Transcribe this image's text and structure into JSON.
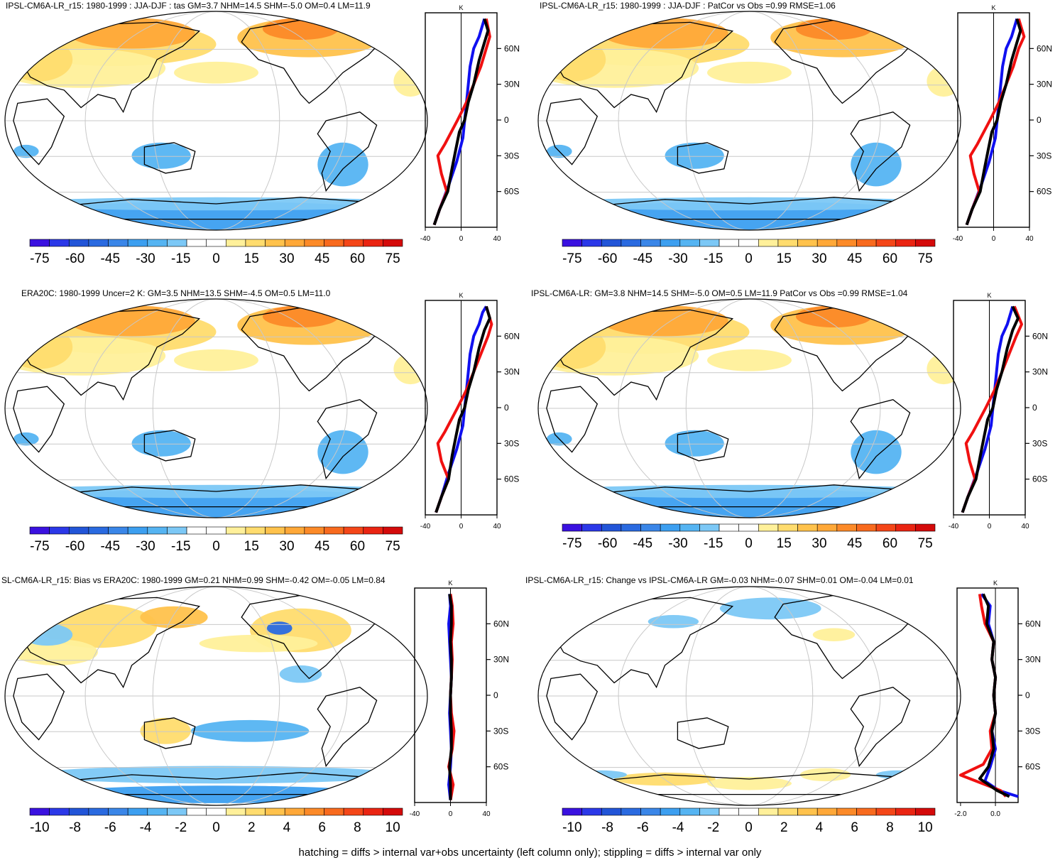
{
  "footer": "hatching = diffs > internal var+obs uncertainty (left column only); stippling = diffs > internal var only",
  "colors": {
    "scale": [
      "#3a11e0",
      "#2b38e8",
      "#2255d8",
      "#2a6ae0",
      "#3a86e8",
      "#3c9ff0",
      "#55b4f2",
      "#7cc8f6",
      "#ffffff",
      "#ffffff",
      "#fff09a",
      "#ffdc6e",
      "#ffc24c",
      "#ffa838",
      "#fc8a28",
      "#f86a1e",
      "#f44618",
      "#ea2412",
      "#d40a0a"
    ],
    "land_outline": "#000000",
    "grid": "#c8c8c8",
    "profile_blue": "#1010f0",
    "profile_red": "#f01010",
    "profile_black": "#000000"
  },
  "panels": [
    {
      "title": "IPSL-CM6A-LR_r15: 1980-1999 : JJA-DJF : tas GM=3.7 NHM=14.5 SHM=-5.0 OM=0.4 LM=11.9",
      "colorbar_labels": [
        "-75",
        "-60",
        "-45",
        "-30",
        "-15",
        "0",
        "15",
        "30",
        "45",
        "60",
        "75"
      ],
      "chart_data": {
        "type": "line",
        "unit": "K",
        "x_ticks": [
          "-40",
          "0",
          "40"
        ],
        "xlim": [
          -40,
          40
        ],
        "y_ticks": [
          "60N",
          "30N",
          "0",
          "30S",
          "60S"
        ],
        "ylim": [
          -90,
          90
        ],
        "series": [
          {
            "color": "blue",
            "x": [
              -30,
              -24,
              -14,
              -5,
              2,
              4,
              6,
              8,
              10,
              14,
              20,
              24,
              26
            ],
            "y": [
              -88,
              -75,
              -55,
              -35,
              -15,
              0,
              15,
              30,
              45,
              60,
              70,
              80,
              85
            ]
          },
          {
            "color": "red",
            "x": [
              -30,
              -24,
              -16,
              -22,
              -26,
              -18,
              -4,
              6,
              14,
              22,
              28,
              32,
              28
            ],
            "y": [
              -88,
              -75,
              -60,
              -45,
              -30,
              -20,
              0,
              15,
              30,
              45,
              60,
              70,
              85
            ]
          },
          {
            "color": "black",
            "x": [
              -30,
              -24,
              -15,
              -10,
              -6,
              -2,
              4,
              8,
              14,
              20,
              26,
              30,
              26
            ],
            "y": [
              -88,
              -75,
              -60,
              -40,
              -25,
              -10,
              0,
              15,
              30,
              50,
              65,
              75,
              85
            ]
          }
        ]
      }
    },
    {
      "title": "IPSL-CM6A-LR_r15: 1980-1999 : JJA-DJF : PatCor vs Obs =0.99 RMSE=1.06",
      "colorbar_labels": [
        "-75",
        "-60",
        "-45",
        "-30",
        "-15",
        "0",
        "15",
        "30",
        "45",
        "60",
        "75"
      ],
      "chart_data": {
        "type": "line",
        "unit": "K",
        "x_ticks": [
          "-40",
          "0",
          "40"
        ],
        "xlim": [
          -40,
          40
        ],
        "y_ticks": [
          "60N",
          "30N",
          "0",
          "30S",
          "60S"
        ],
        "ylim": [
          -90,
          90
        ],
        "series": [
          {
            "color": "blue",
            "x": [
              -30,
              -24,
              -14,
              -5,
              2,
              4,
              6,
              8,
              10,
              14,
              20,
              24,
              26
            ],
            "y": [
              -88,
              -75,
              -55,
              -35,
              -15,
              0,
              15,
              30,
              45,
              60,
              70,
              80,
              85
            ]
          },
          {
            "color": "red",
            "x": [
              -30,
              -24,
              -16,
              -22,
              -26,
              -18,
              -4,
              6,
              14,
              22,
              28,
              34,
              28
            ],
            "y": [
              -88,
              -75,
              -60,
              -45,
              -30,
              -20,
              0,
              15,
              30,
              45,
              60,
              70,
              85
            ]
          },
          {
            "color": "black",
            "x": [
              -30,
              -24,
              -15,
              -10,
              -6,
              -2,
              4,
              8,
              14,
              20,
              26,
              30,
              26
            ],
            "y": [
              -88,
              -75,
              -60,
              -40,
              -25,
              -10,
              0,
              15,
              30,
              50,
              65,
              75,
              85
            ]
          }
        ]
      }
    },
    {
      "title": "ERA20C: 1980-1999 Uncer=2 K: GM=3.5 NHM=13.5 SHM=-4.5 OM=0.5 LM=11.0",
      "colorbar_labels": [
        "-75",
        "-60",
        "-45",
        "-30",
        "-15",
        "0",
        "15",
        "30",
        "45",
        "60",
        "75"
      ],
      "chart_data": {
        "type": "line",
        "unit": "K",
        "x_ticks": [
          "-40",
          "0",
          "40"
        ],
        "xlim": [
          -40,
          40
        ],
        "y_ticks": [
          "60N",
          "30N",
          "0",
          "30S",
          "60S"
        ],
        "ylim": [
          -90,
          90
        ],
        "series": [
          {
            "color": "blue",
            "x": [
              -28,
              -22,
              -14,
              -5,
              2,
              4,
              6,
              8,
              10,
              14,
              20,
              24,
              28
            ],
            "y": [
              -88,
              -75,
              -55,
              -35,
              -15,
              0,
              15,
              30,
              45,
              60,
              70,
              80,
              85
            ]
          },
          {
            "color": "red",
            "x": [
              -28,
              -22,
              -14,
              -22,
              -26,
              -18,
              -4,
              6,
              14,
              22,
              30,
              34,
              28
            ],
            "y": [
              -88,
              -75,
              -60,
              -45,
              -30,
              -20,
              0,
              15,
              30,
              45,
              60,
              70,
              85
            ]
          },
          {
            "color": "black",
            "x": [
              -28,
              -22,
              -14,
              -10,
              -6,
              -2,
              4,
              8,
              14,
              20,
              26,
              32,
              28
            ],
            "y": [
              -88,
              -75,
              -60,
              -40,
              -25,
              -10,
              0,
              15,
              30,
              50,
              65,
              75,
              85
            ]
          }
        ]
      }
    },
    {
      "title": "IPSL-CM6A-LR: GM=3.8 NHM=14.5 SHM=-5.0 OM=0.5 LM=11.9 PatCor vs Obs =0.99 RMSE=1.04",
      "colorbar_labels": [
        "-75",
        "-60",
        "-45",
        "-30",
        "-15",
        "0",
        "15",
        "30",
        "45",
        "60",
        "75"
      ],
      "chart_data": {
        "type": "line",
        "unit": "K",
        "x_ticks": [
          "-40",
          "0",
          "40"
        ],
        "xlim": [
          -40,
          40
        ],
        "y_ticks": [
          "60N",
          "30N",
          "0",
          "30S",
          "60S"
        ],
        "ylim": [
          -90,
          90
        ],
        "series": [
          {
            "color": "blue",
            "x": [
              -30,
              -24,
              -14,
              -5,
              2,
              4,
              6,
              8,
              10,
              14,
              20,
              24,
              26
            ],
            "y": [
              -88,
              -75,
              -55,
              -35,
              -15,
              0,
              15,
              30,
              45,
              60,
              70,
              80,
              85
            ]
          },
          {
            "color": "red",
            "x": [
              -30,
              -24,
              -16,
              -22,
              -26,
              -18,
              -4,
              6,
              14,
              22,
              30,
              36,
              28
            ],
            "y": [
              -88,
              -75,
              -60,
              -45,
              -30,
              -20,
              0,
              15,
              30,
              45,
              60,
              70,
              85
            ]
          },
          {
            "color": "black",
            "x": [
              -30,
              -24,
              -15,
              -10,
              -6,
              -2,
              4,
              8,
              14,
              20,
              26,
              32,
              26
            ],
            "y": [
              -88,
              -75,
              -60,
              -40,
              -25,
              -10,
              0,
              15,
              30,
              50,
              65,
              75,
              85
            ]
          }
        ]
      }
    },
    {
      "title": "SL-CM6A-LR_r15: Bias vs ERA20C: 1980-1999 GM=0.21 NHM=0.99 SHM=-0.42 OM=-0.05 LM=0.84",
      "colorbar_labels": [
        "-10",
        "-8",
        "-6",
        "-4",
        "-2",
        "0",
        "2",
        "4",
        "6",
        "8",
        "10"
      ],
      "chart_data": {
        "type": "line",
        "unit": "K",
        "x_ticks": [
          "-40",
          "0",
          "40"
        ],
        "xlim": [
          -40,
          40
        ],
        "y_ticks": [
          "60N",
          "30N",
          "0",
          "30S",
          "60S"
        ],
        "ylim": [
          -90,
          90
        ],
        "series": [
          {
            "color": "blue",
            "x": [
              0,
              -2,
              0,
              1,
              0,
              -1,
              0,
              1,
              0,
              -1,
              -2,
              0,
              -1
            ],
            "y": [
              -88,
              -75,
              -60,
              -45,
              -30,
              -15,
              0,
              15,
              30,
              45,
              60,
              75,
              85
            ]
          },
          {
            "color": "red",
            "x": [
              0,
              3,
              -2,
              2,
              4,
              1,
              0,
              1,
              2,
              1,
              3,
              2,
              0
            ],
            "y": [
              -88,
              -75,
              -60,
              -45,
              -30,
              -15,
              0,
              15,
              30,
              45,
              60,
              75,
              85
            ]
          },
          {
            "color": "black",
            "x": [
              0,
              0,
              -1,
              1,
              1,
              0,
              0,
              1,
              1,
              0,
              1,
              1,
              -1
            ],
            "y": [
              -88,
              -75,
              -60,
              -45,
              -30,
              -15,
              0,
              15,
              30,
              45,
              60,
              75,
              85
            ]
          }
        ]
      }
    },
    {
      "title": "IPSL-CM6A-LR_r15: Change vs IPSL-CM6A-LR GM=-0.03 NHM=-0.07 SHM=0.01 OM=-0.04 LM=0.01",
      "colorbar_labels": [
        "-10",
        "-8",
        "-6",
        "-4",
        "-2",
        "0",
        "2",
        "4",
        "6",
        "8",
        "10"
      ],
      "chart_data": {
        "type": "line",
        "unit": "K",
        "x_ticks": [
          "-2.0",
          "0.0"
        ],
        "xlim": [
          -2.2,
          1.3
        ],
        "y_ticks": [
          "60N",
          "30N",
          "0",
          "30S",
          "60S"
        ],
        "ylim": [
          -90,
          90
        ],
        "series": [
          {
            "color": "blue",
            "x": [
              1.3,
              0.2,
              -0.6,
              -0.3,
              0.0,
              -0.2,
              0.0,
              -0.1,
              0.0,
              -0.2,
              -0.1,
              -0.4,
              -0.3,
              -0.8
            ],
            "y": [
              -85,
              -80,
              -72,
              -60,
              -45,
              -30,
              -15,
              0,
              15,
              30,
              45,
              60,
              75,
              85
            ]
          },
          {
            "color": "red",
            "x": [
              0.6,
              0.3,
              -2.0,
              -0.7,
              -0.2,
              -0.3,
              0.0,
              -0.1,
              0.0,
              -0.2,
              -0.1,
              -0.6,
              -0.8,
              -0.9
            ],
            "y": [
              -85,
              -80,
              -67,
              -58,
              -45,
              -30,
              -15,
              0,
              15,
              30,
              45,
              60,
              75,
              85
            ]
          },
          {
            "color": "black",
            "x": [
              0.8,
              0.1,
              -0.9,
              -0.4,
              -0.1,
              -0.2,
              0.0,
              -0.1,
              0.0,
              -0.2,
              -0.1,
              -0.5,
              -0.4,
              -0.7
            ],
            "y": [
              -85,
              -80,
              -70,
              -60,
              -45,
              -30,
              -15,
              0,
              15,
              30,
              45,
              60,
              75,
              85
            ]
          }
        ]
      }
    }
  ]
}
